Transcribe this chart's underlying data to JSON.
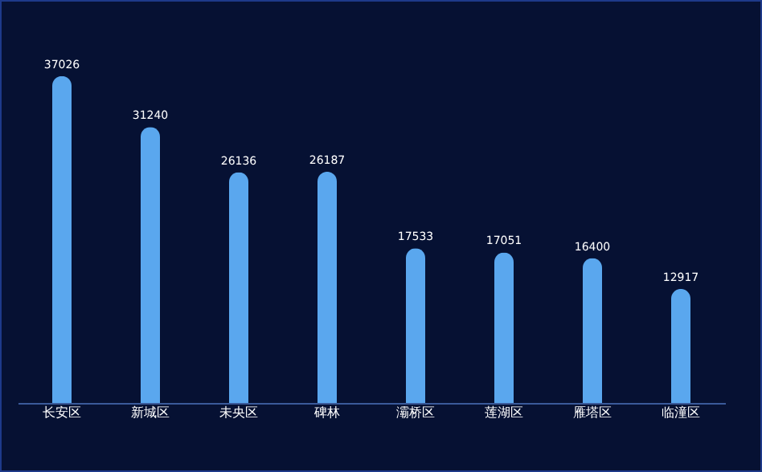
{
  "chart_data": {
    "type": "bar",
    "categories": [
      "长安区",
      "新城区",
      "未央区",
      "碑林",
      "灞桥区",
      "莲湖区",
      "雁塔区",
      "临潼区"
    ],
    "values": [
      37026,
      31240,
      26136,
      26187,
      17533,
      17051,
      16400,
      12917
    ],
    "color": "#5aa7ee",
    "data_labels": true
  }
}
